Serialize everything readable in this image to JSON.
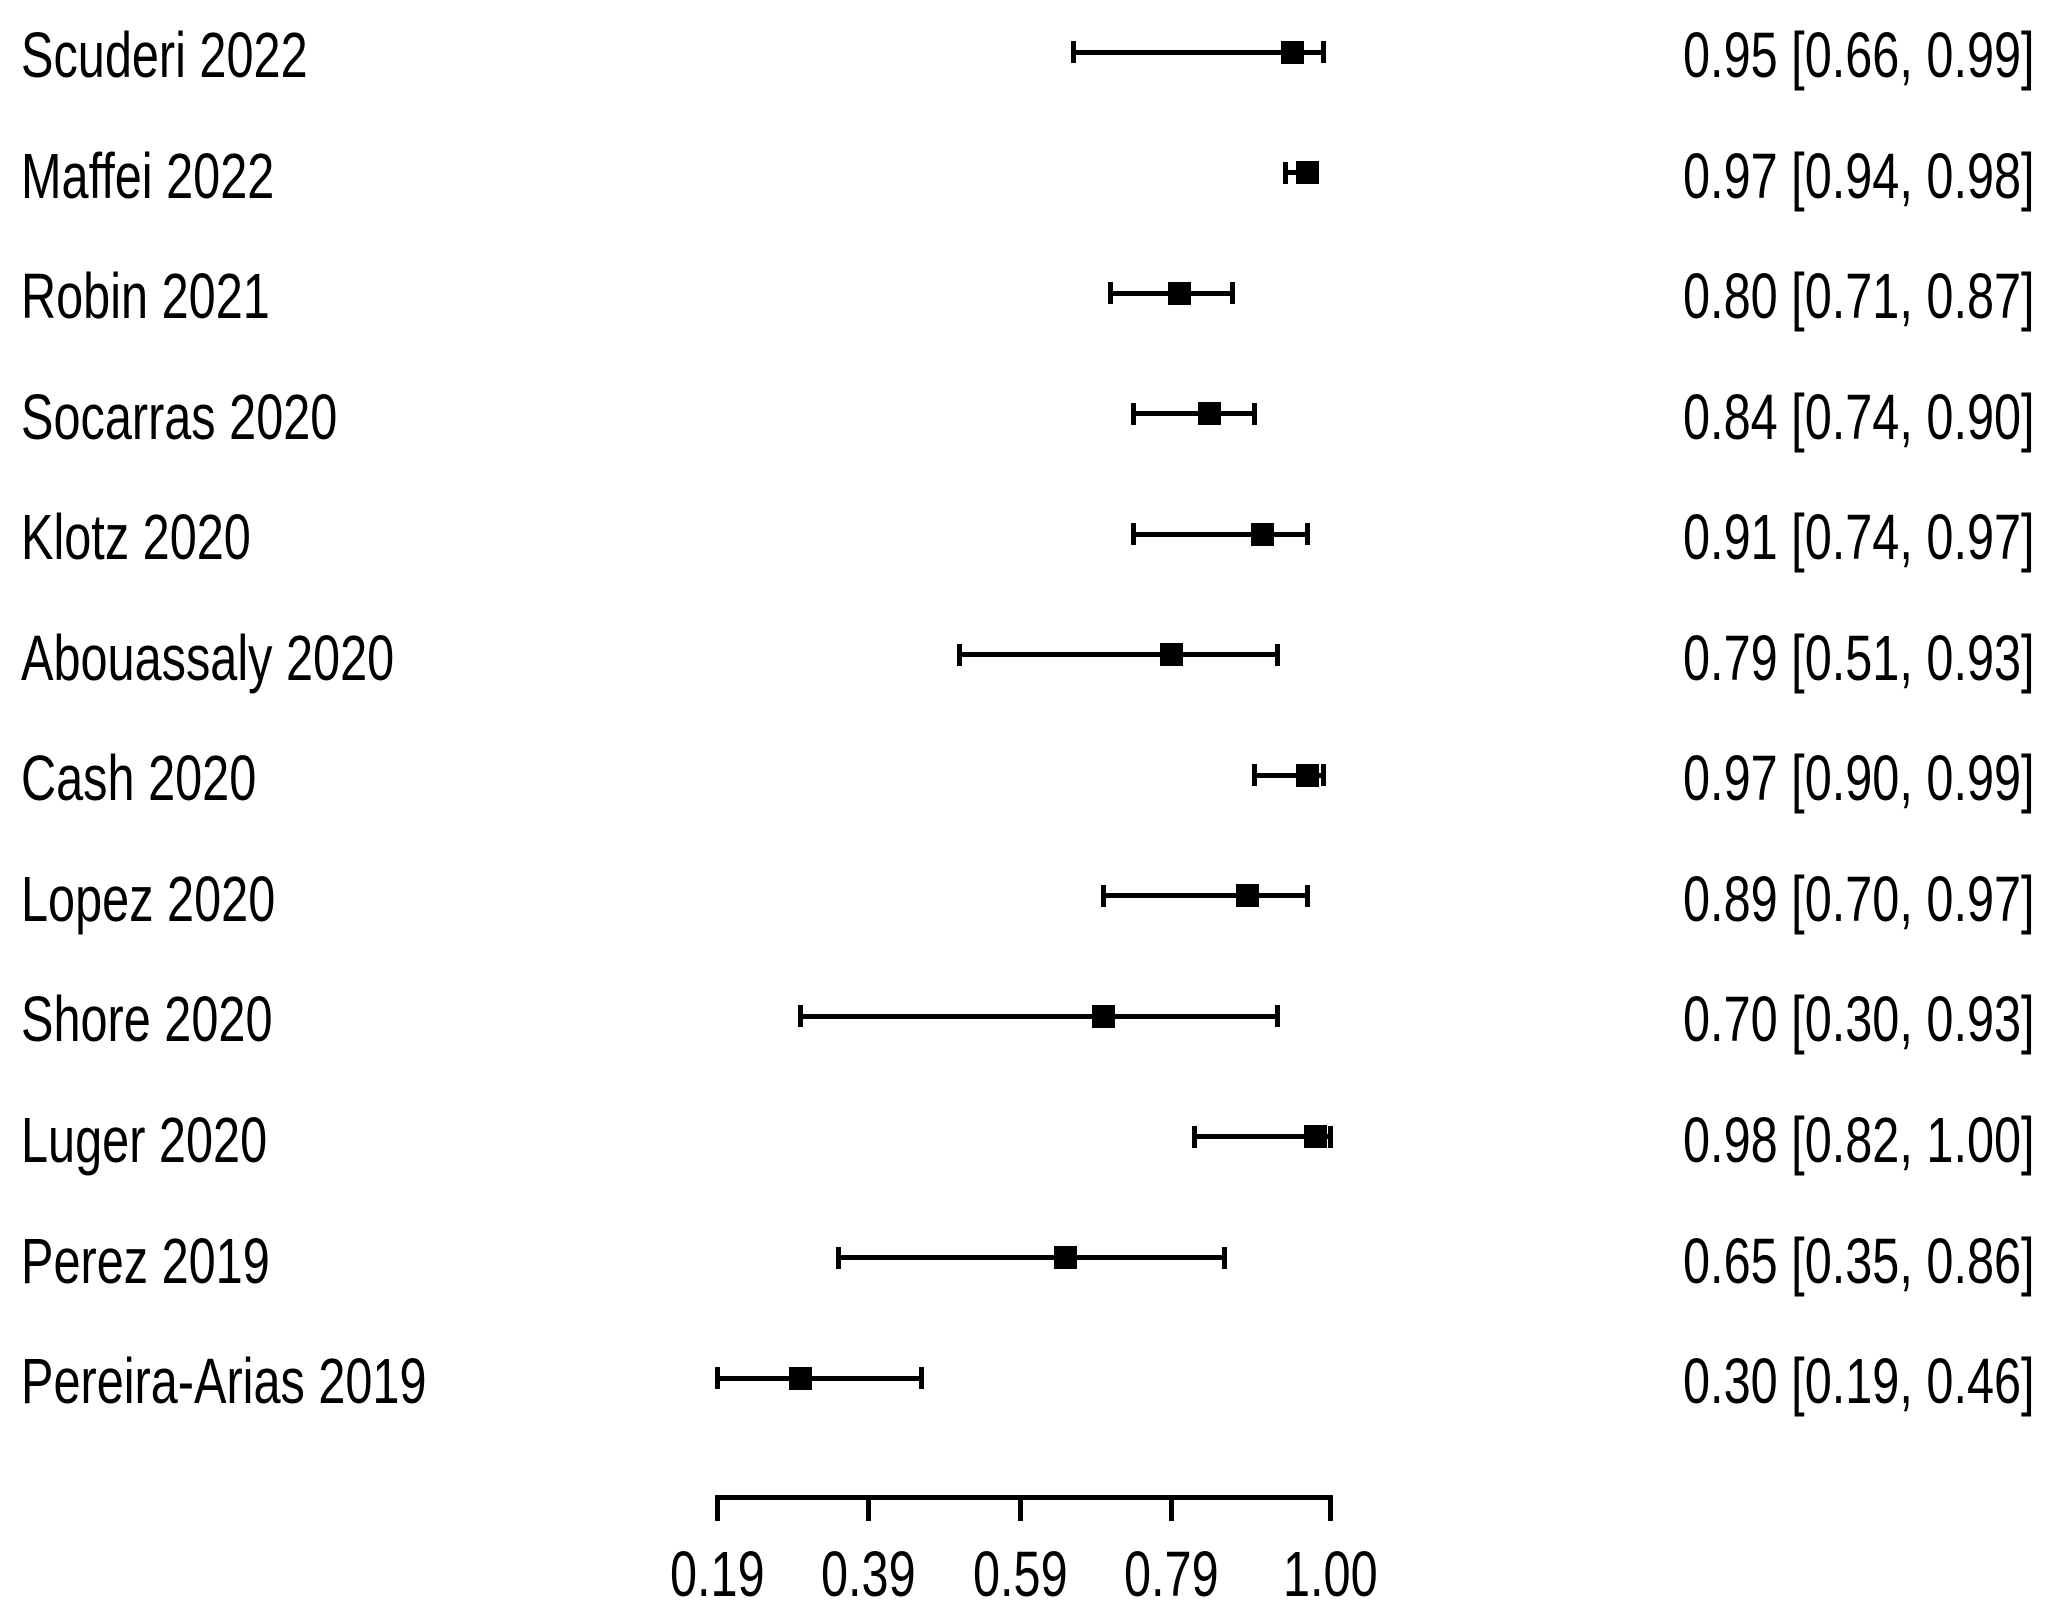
{
  "chart_data": {
    "type": "forest",
    "title": "",
    "xlabel": "",
    "ylabel": "",
    "grid": false,
    "legend": false,
    "marker_color": "#000000",
    "background_color": "#ffffff",
    "x_axis": {
      "range": [
        0.19,
        1.0
      ],
      "ticks": [
        0.19,
        0.39,
        0.59,
        0.79,
        1.0
      ],
      "tick_labels": [
        "0.19",
        "0.39",
        "0.59",
        "0.79",
        "1.00"
      ]
    },
    "rows": [
      {
        "label": "Scuderi 2022",
        "estimate": 0.95,
        "ci_low": 0.66,
        "ci_high": 0.99,
        "value_text": "0.95 [0.66, 0.99]"
      },
      {
        "label": "Maffei 2022",
        "estimate": 0.97,
        "ci_low": 0.94,
        "ci_high": 0.98,
        "value_text": "0.97 [0.94, 0.98]"
      },
      {
        "label": "Robin 2021",
        "estimate": 0.8,
        "ci_low": 0.71,
        "ci_high": 0.87,
        "value_text": "0.80 [0.71, 0.87]"
      },
      {
        "label": "Socarras 2020",
        "estimate": 0.84,
        "ci_low": 0.74,
        "ci_high": 0.9,
        "value_text": "0.84 [0.74, 0.90]"
      },
      {
        "label": "Klotz 2020",
        "estimate": 0.91,
        "ci_low": 0.74,
        "ci_high": 0.97,
        "value_text": "0.91 [0.74, 0.97]"
      },
      {
        "label": "Abouassaly 2020",
        "estimate": 0.79,
        "ci_low": 0.51,
        "ci_high": 0.93,
        "value_text": "0.79 [0.51, 0.93]"
      },
      {
        "label": "Cash 2020",
        "estimate": 0.97,
        "ci_low": 0.9,
        "ci_high": 0.99,
        "value_text": "0.97 [0.90, 0.99]"
      },
      {
        "label": "Lopez 2020",
        "estimate": 0.89,
        "ci_low": 0.7,
        "ci_high": 0.97,
        "value_text": "0.89 [0.70, 0.97]"
      },
      {
        "label": "Shore 2020",
        "estimate": 0.7,
        "ci_low": 0.3,
        "ci_high": 0.93,
        "value_text": "0.70 [0.30, 0.93]"
      },
      {
        "label": "Luger 2020",
        "estimate": 0.98,
        "ci_low": 0.82,
        "ci_high": 1.0,
        "value_text": "0.98 [0.82, 1.00]"
      },
      {
        "label": "Perez 2019",
        "estimate": 0.65,
        "ci_low": 0.35,
        "ci_high": 0.86,
        "value_text": "0.65 [0.35, 0.86]"
      },
      {
        "label": "Pereira-Arias 2019",
        "estimate": 0.3,
        "ci_low": 0.19,
        "ci_high": 0.46,
        "value_text": "0.30 [0.19, 0.46]"
      }
    ]
  }
}
